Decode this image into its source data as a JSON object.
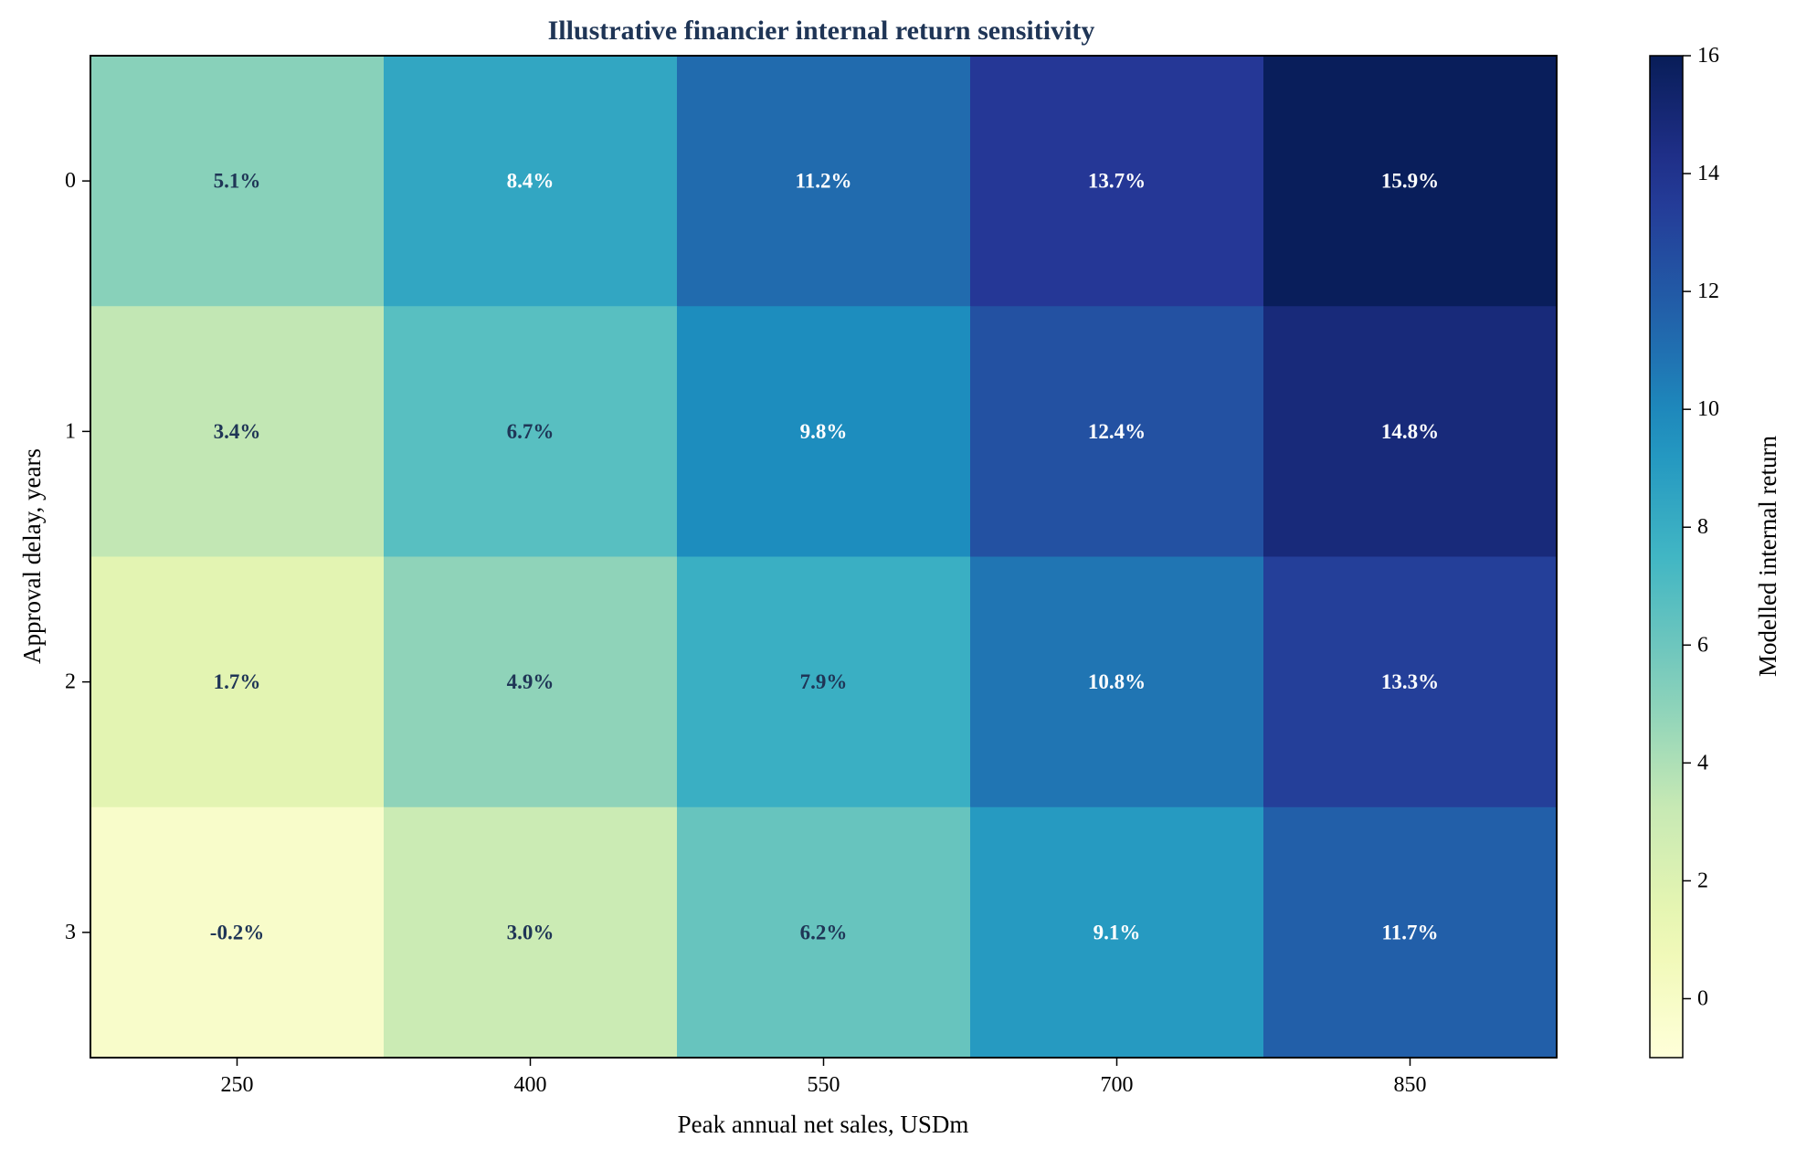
{
  "chart_data": {
    "type": "heatmap",
    "title": "Illustrative financier internal return sensitivity",
    "xlabel": "Peak annual net sales, USDm",
    "ylabel": "Approval delay, years",
    "x_categories": [
      "250",
      "400",
      "550",
      "700",
      "850"
    ],
    "y_categories": [
      "0",
      "1",
      "2",
      "3"
    ],
    "values": [
      [
        5.1,
        8.4,
        11.2,
        13.7,
        15.9
      ],
      [
        3.4,
        6.7,
        9.8,
        12.4,
        14.8
      ],
      [
        1.7,
        4.9,
        7.9,
        10.8,
        13.3
      ],
      [
        -0.2,
        3.0,
        6.2,
        9.1,
        11.7
      ]
    ],
    "cell_labels": [
      [
        "5.1%",
        "8.4%",
        "11.2%",
        "13.7%",
        "15.9%"
      ],
      [
        "3.4%",
        "6.7%",
        "9.8%",
        "12.4%",
        "14.8%"
      ],
      [
        "1.7%",
        "4.9%",
        "7.9%",
        "10.8%",
        "13.3%"
      ],
      [
        "-0.2%",
        "3.0%",
        "6.2%",
        "9.1%",
        "11.7%"
      ]
    ],
    "colorbar": {
      "label": "Modelled internal return",
      "range": [
        -1,
        16
      ],
      "ticks": [
        "0",
        "2",
        "4",
        "6",
        "8",
        "10",
        "12",
        "14",
        "16"
      ],
      "colormap": "YlGnBu"
    },
    "colors": {
      "title": "#1f3556",
      "dark_annotation": "#1f3556",
      "light_annotation": "#ffffff",
      "axis": "#000000"
    }
  }
}
